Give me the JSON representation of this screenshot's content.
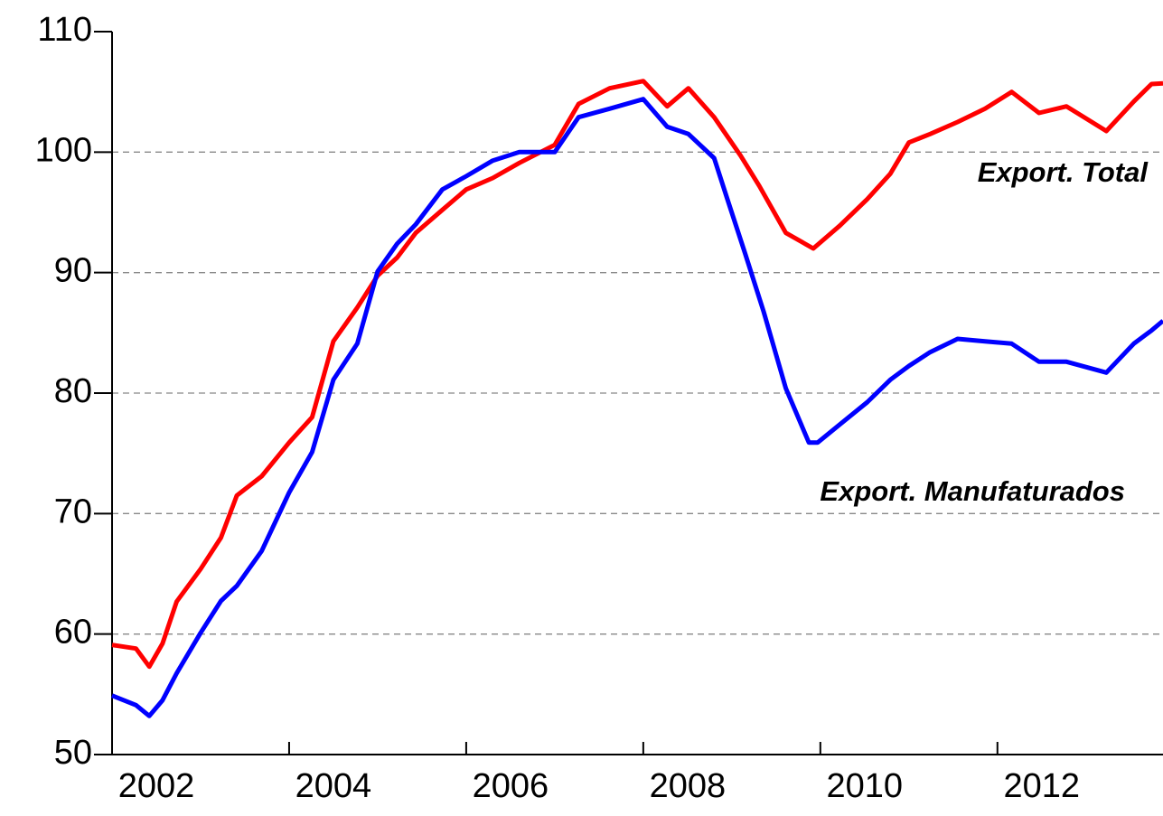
{
  "chart_data": {
    "type": "line",
    "x_is_year": true,
    "xlim": [
      2002,
      2013.87
    ],
    "xticks": [
      2002,
      2004,
      2006,
      2008,
      2010,
      2012
    ],
    "ylim": [
      50,
      110
    ],
    "yticks": [
      50,
      60,
      70,
      80,
      90,
      100,
      110
    ],
    "grid": true,
    "annotations": [
      "Export. Total",
      "Export. Manufaturados"
    ],
    "series": [
      {
        "name": "Export. Total",
        "color": "#ff0000",
        "x": [
          2002.0,
          2002.27,
          2002.42,
          2002.57,
          2002.73,
          2003.0,
          2003.23,
          2003.41,
          2003.69,
          2004.0,
          2004.26,
          2004.5,
          2004.77,
          2005.0,
          2005.22,
          2005.43,
          2005.73,
          2006.0,
          2006.3,
          2006.6,
          2007.0,
          2007.27,
          2007.62,
          2008.0,
          2008.27,
          2008.51,
          2008.8,
          2009.1,
          2009.31,
          2009.61,
          2009.92,
          2010.22,
          2010.53,
          2010.79,
          2011.0,
          2011.24,
          2011.55,
          2011.86,
          2012.16,
          2012.47,
          2012.78,
          2013.23,
          2013.54,
          2013.74,
          2013.87
        ],
        "values": [
          59.1,
          58.8,
          57.3,
          59.2,
          62.7,
          65.4,
          68,
          71.5,
          73.1,
          75.9,
          78,
          84.3,
          87.1,
          89.75,
          91.25,
          93.3,
          95.2,
          96.9,
          97.85,
          99.1,
          100.6,
          104,
          105.3,
          105.9,
          103.8,
          105.3,
          102.9,
          99.7,
          97.2,
          93.3,
          92,
          93.9,
          96.1,
          98.2,
          100.8,
          101.5,
          102.5,
          103.6,
          105,
          103.25,
          103.8,
          101.75,
          104.2,
          105.65,
          105.7
        ]
      },
      {
        "name": "Export. Manufaturados",
        "color": "#0000ff",
        "x": [
          2002.0,
          2002.27,
          2002.42,
          2002.57,
          2002.73,
          2003.0,
          2003.23,
          2003.41,
          2003.69,
          2004.0,
          2004.26,
          2004.5,
          2004.77,
          2005.0,
          2005.22,
          2005.43,
          2005.73,
          2006.0,
          2006.3,
          2006.6,
          2007.0,
          2007.27,
          2007.62,
          2008.0,
          2008.27,
          2008.51,
          2008.8,
          2008.95,
          2009.15,
          2009.36,
          2009.61,
          2009.87,
          2009.97,
          2010.22,
          2010.53,
          2010.79,
          2011.0,
          2011.24,
          2011.55,
          2011.86,
          2012.16,
          2012.47,
          2012.78,
          2013.23,
          2013.54,
          2013.74,
          2013.87
        ],
        "values": [
          54.9,
          54.1,
          53.2,
          54.5,
          56.75,
          60.1,
          62.75,
          64,
          66.9,
          71.75,
          75.1,
          81.1,
          84.1,
          90.1,
          92.4,
          94,
          96.9,
          98,
          99.3,
          100,
          100,
          102.9,
          103.6,
          104.4,
          102.1,
          101.5,
          99.5,
          96.1,
          91.6,
          86.75,
          80.4,
          75.9,
          75.9,
          77.4,
          79.25,
          81.1,
          82.25,
          83.4,
          84.5,
          84.3,
          84.1,
          82.6,
          82.6,
          81.7,
          84.1,
          85.2,
          86
        ]
      }
    ]
  }
}
